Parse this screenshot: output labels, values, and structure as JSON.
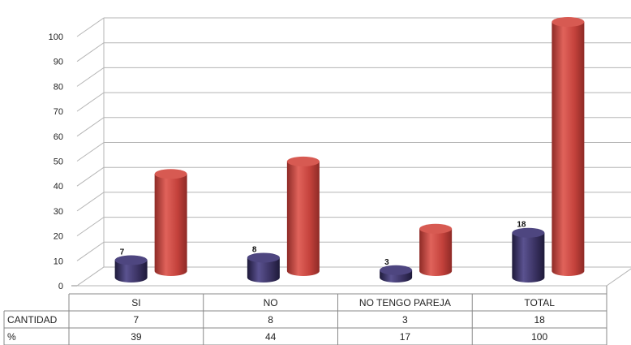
{
  "chart_data": {
    "type": "bar",
    "style": "3d-cylinder",
    "categories": [
      "SI",
      "NO",
      "NO TENGO PAREJA",
      "TOTAL"
    ],
    "series": [
      {
        "name": "CANTIDAD",
        "values": [
          7,
          8,
          3,
          18
        ],
        "color": "#3b3363"
      },
      {
        "name": "%",
        "values": [
          39,
          44,
          17,
          100
        ],
        "color": "#c4423c"
      }
    ],
    "ylim": [
      0,
      100
    ],
    "yticks": [
      0,
      10,
      20,
      30,
      40,
      50,
      60,
      70,
      80,
      90,
      100
    ],
    "grid": true,
    "data_labels_series": "CANTIDAD",
    "data_table": true
  }
}
